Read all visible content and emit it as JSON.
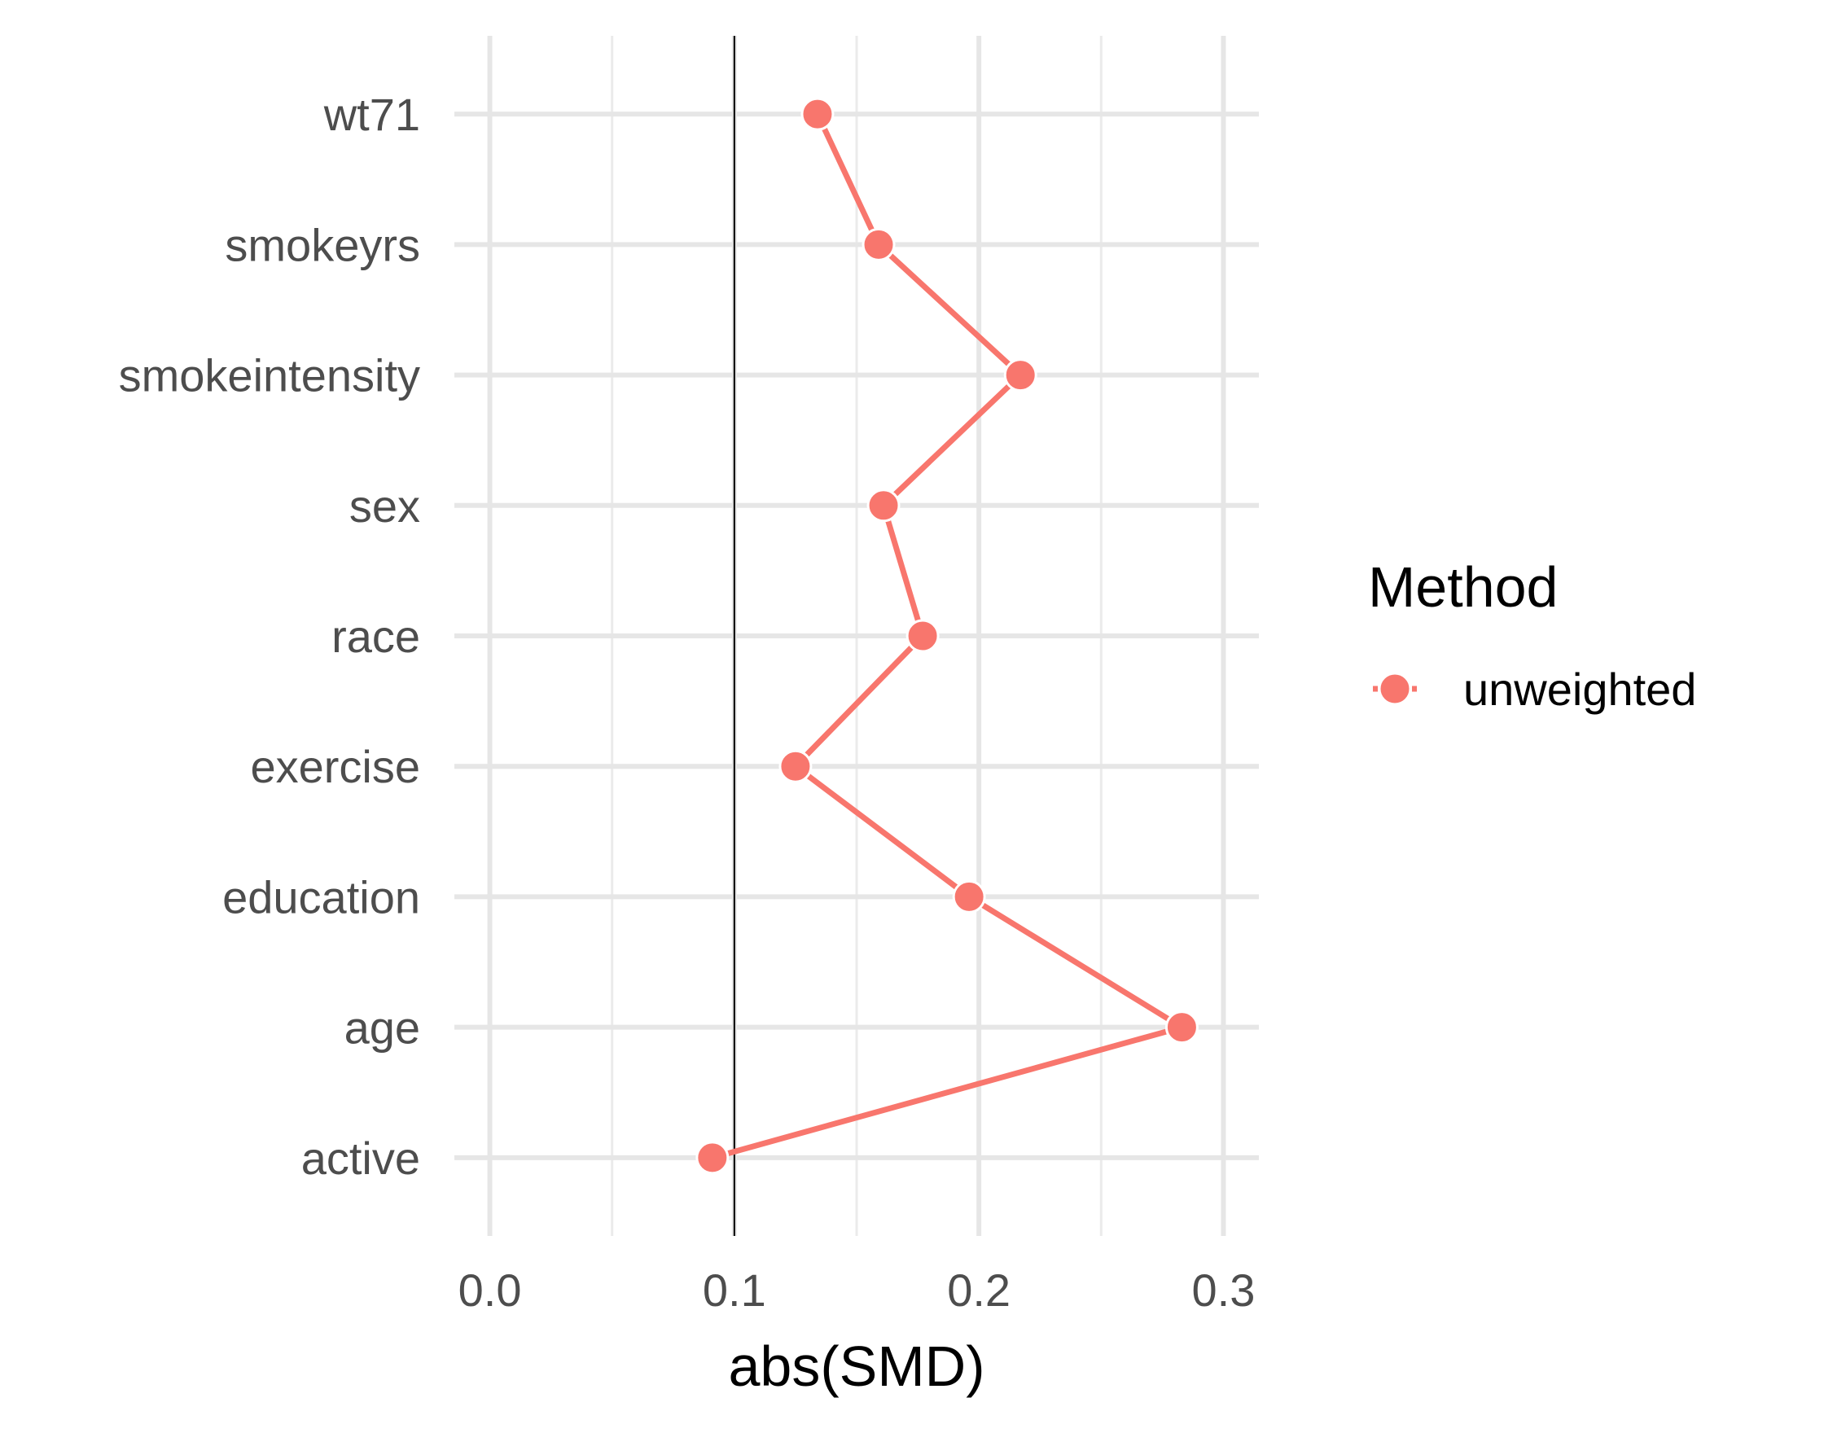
{
  "chart_data": {
    "type": "line",
    "title": "",
    "xlabel": "abs(SMD)",
    "ylabel": "",
    "xlim": [
      -0.0145,
      0.3145
    ],
    "xticks": [
      0.0,
      0.1,
      0.2,
      0.3
    ],
    "xtick_labels": [
      "0.0",
      "0.1",
      "0.2",
      "0.3"
    ],
    "categories": [
      "active",
      "age",
      "education",
      "exercise",
      "race",
      "sex",
      "smokeintensity",
      "smokeyrs",
      "wt71"
    ],
    "reference_line": 0.1,
    "grid": true,
    "legend": {
      "title": "Method",
      "placement": "right"
    },
    "series": [
      {
        "name": "unweighted",
        "color": "#F8766D",
        "values": [
          0.091,
          0.283,
          0.196,
          0.125,
          0.177,
          0.161,
          0.217,
          0.159,
          0.134
        ]
      }
    ]
  }
}
